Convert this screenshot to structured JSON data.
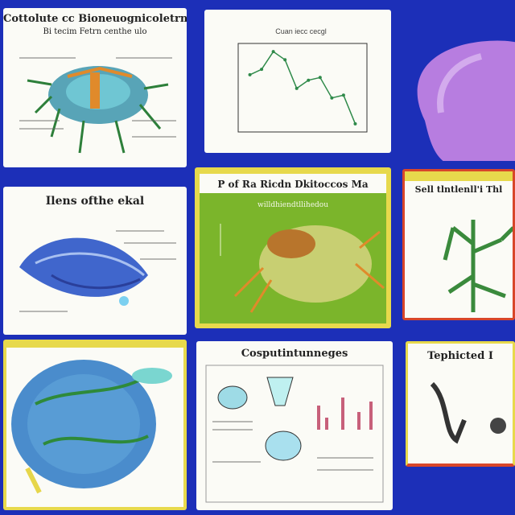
{
  "colors": {
    "background": "#1c2fb8",
    "card": "#fbfbf6",
    "green_panel": "#7bb52b",
    "yellow_frame": "#e7d94c",
    "red_frame": "#d8462a",
    "purple_blob": "#b77de0"
  },
  "cards": {
    "c1": {
      "title": "Cottolute cc Bioneuognicoletrne",
      "subtitle": "Bi tecim Fetrn centhe ulo"
    },
    "c2": {
      "caption": "Cuan iecc cecgl"
    },
    "c4": {
      "title": "Ilens ofthe ekal"
    },
    "c5": {
      "title": "P of Ra Ricdn Dkitoccos Ma",
      "subtitle": "willdhiendtllihedou"
    },
    "c6": {
      "title": "Sell tlntlenll'i Thl"
    },
    "c8": {
      "title": "Cosputintunneges"
    },
    "c9": {
      "title": "Tephicted I"
    }
  },
  "chart_data": {
    "type": "line",
    "x": [
      1,
      2,
      3,
      4,
      5,
      6,
      7,
      8,
      9,
      10
    ],
    "values": [
      6.2,
      6.6,
      7.9,
      7.3,
      5.2,
      5.8,
      6.0,
      4.5,
      4.7,
      2.6
    ],
    "title": "Cuan iecc cecgl"
  },
  "icons": [
    "microorganism-illustration",
    "fish-anatomy-illustration",
    "tick-illustration",
    "cell-illustration",
    "tree-illustration",
    "specimen-illustration"
  ]
}
